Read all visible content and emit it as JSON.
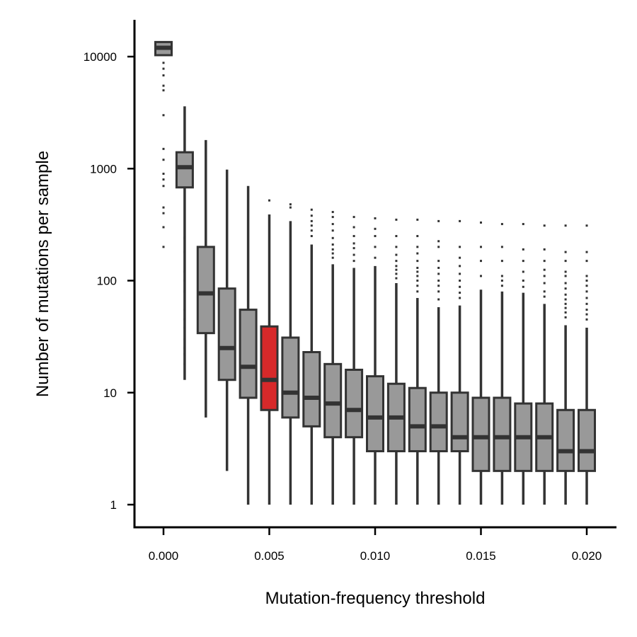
{
  "chart_data": {
    "type": "boxplot",
    "title": "",
    "xlabel": "Mutation-frequency threshold",
    "ylabel": "Number of mutations per sample",
    "yscale": "log",
    "ylim": [
      0.8,
      20000
    ],
    "xlim": [
      -0.0014,
      0.0214
    ],
    "xticks": [
      0.0,
      0.005,
      0.01,
      0.015,
      0.02
    ],
    "xtick_labels": [
      "0.000",
      "0.005",
      "0.010",
      "0.015",
      "0.020"
    ],
    "yticks": [
      1,
      10,
      100,
      1000,
      10000
    ],
    "ytick_labels": [
      "1",
      "10",
      "100",
      "1000",
      "10000"
    ],
    "grid": false,
    "legend": "none",
    "colors": {
      "box": "#999999",
      "highlight": "#d7292a",
      "line": "#333333"
    },
    "highlight_threshold": 0.005,
    "boxes": [
      {
        "x": 0.0,
        "min": 10200,
        "q1": 10300,
        "median": 12000,
        "q3": 13500,
        "max": 13500,
        "outliers": [
          8800,
          7800,
          6800,
          5500,
          5000,
          3000,
          1500,
          1200,
          900,
          800,
          700,
          450,
          400,
          300,
          200
        ]
      },
      {
        "x": 0.001,
        "min": 13,
        "q1": 680,
        "median": 1030,
        "q3": 1400,
        "max": 3600,
        "outliers": [
          240,
          180,
          120,
          100,
          80,
          55,
          45,
          38,
          30,
          25,
          22,
          18
        ]
      },
      {
        "x": 0.002,
        "min": 6,
        "q1": 34,
        "median": 77,
        "q3": 200,
        "max": 1800,
        "outliers": []
      },
      {
        "x": 0.003,
        "min": 2,
        "q1": 13,
        "median": 25,
        "q3": 85,
        "max": 980,
        "outliers": []
      },
      {
        "x": 0.004,
        "min": 1,
        "q1": 9,
        "median": 17,
        "q3": 55,
        "max": 700,
        "outliers": []
      },
      {
        "x": 0.005,
        "min": 1,
        "q1": 7,
        "median": 13,
        "q3": 39,
        "max": 390,
        "outliers": [
          520
        ]
      },
      {
        "x": 0.006,
        "min": 1,
        "q1": 6,
        "median": 10,
        "q3": 31,
        "max": 340,
        "outliers": [
          450,
          480
        ]
      },
      {
        "x": 0.007,
        "min": 1,
        "q1": 5,
        "median": 9,
        "q3": 23,
        "max": 210,
        "outliers": [
          250,
          280,
          310,
          340,
          380,
          430
        ]
      },
      {
        "x": 0.008,
        "min": 1,
        "q1": 4,
        "median": 8,
        "q3": 18,
        "max": 140,
        "outliers": [
          160,
          175,
          190,
          210,
          240,
          280,
          320,
          370,
          410
        ]
      },
      {
        "x": 0.009,
        "min": 1,
        "q1": 4,
        "median": 7,
        "q3": 16,
        "max": 130,
        "outliers": [
          150,
          170,
          195,
          215,
          250,
          300,
          370
        ]
      },
      {
        "x": 0.01,
        "min": 1,
        "q1": 3,
        "median": 6,
        "q3": 14,
        "max": 135,
        "outliers": [
          160,
          200,
          250,
          290,
          360
        ]
      },
      {
        "x": 0.011,
        "min": 1,
        "q1": 3,
        "median": 6,
        "q3": 12,
        "max": 95,
        "outliers": [
          105,
          115,
          125,
          135,
          150,
          170,
          200,
          250,
          350
        ]
      },
      {
        "x": 0.012,
        "min": 1,
        "q1": 3,
        "median": 5,
        "q3": 11,
        "max": 70,
        "outliers": [
          80,
          90,
          100,
          110,
          120,
          130,
          150,
          175,
          200,
          250,
          350
        ]
      },
      {
        "x": 0.013,
        "min": 1,
        "q1": 3,
        "median": 5,
        "q3": 10,
        "max": 58,
        "outliers": [
          68,
          80,
          90,
          100,
          115,
          130,
          150,
          200,
          225,
          340
        ]
      },
      {
        "x": 0.014,
        "min": 1,
        "q1": 3,
        "median": 4,
        "q3": 10,
        "max": 60,
        "outliers": [
          70,
          78,
          88,
          100,
          115,
          135,
          160,
          200,
          340
        ]
      },
      {
        "x": 0.015,
        "min": 1,
        "q1": 2,
        "median": 4,
        "q3": 9,
        "max": 83,
        "outliers": [
          110,
          150,
          200,
          330
        ]
      },
      {
        "x": 0.016,
        "min": 1,
        "q1": 2,
        "median": 4,
        "q3": 9,
        "max": 80,
        "outliers": [
          90,
          100,
          110,
          150,
          200,
          320
        ]
      },
      {
        "x": 0.017,
        "min": 1,
        "q1": 2,
        "median": 4,
        "q3": 8,
        "max": 78,
        "outliers": [
          88,
          100,
          120,
          150,
          190,
          320
        ]
      },
      {
        "x": 0.018,
        "min": 1,
        "q1": 2,
        "median": 4,
        "q3": 8,
        "max": 62,
        "outliers": [
          72,
          80,
          95,
          110,
          125,
          150,
          190,
          310
        ]
      },
      {
        "x": 0.019,
        "min": 1,
        "q1": 2,
        "median": 3,
        "q3": 7,
        "max": 40,
        "outliers": [
          47,
          52,
          57,
          62,
          68,
          75,
          85,
          95,
          110,
          120,
          150,
          180,
          310
        ]
      },
      {
        "x": 0.02,
        "min": 1,
        "q1": 2,
        "median": 3,
        "q3": 7,
        "max": 38,
        "outliers": [
          45,
          50,
          55,
          62,
          70,
          80,
          90,
          100,
          110,
          150,
          180,
          310
        ]
      }
    ]
  }
}
